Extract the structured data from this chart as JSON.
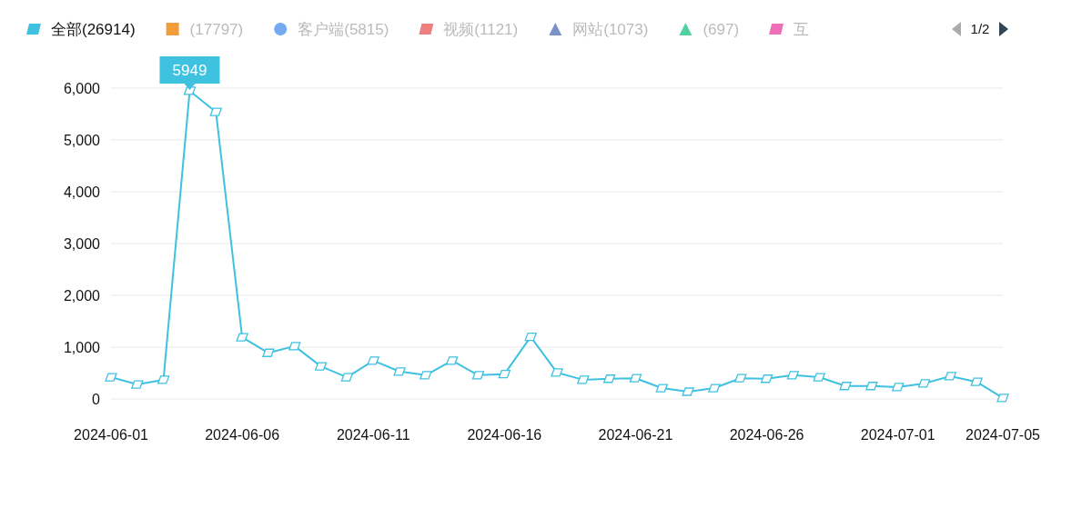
{
  "chart_data": {
    "type": "line",
    "x": [
      "2024-06-01",
      "2024-06-02",
      "2024-06-03",
      "2024-06-04",
      "2024-06-05",
      "2024-06-06",
      "2024-06-07",
      "2024-06-08",
      "2024-06-09",
      "2024-06-10",
      "2024-06-11",
      "2024-06-12",
      "2024-06-13",
      "2024-06-14",
      "2024-06-15",
      "2024-06-16",
      "2024-06-17",
      "2024-06-18",
      "2024-06-19",
      "2024-06-20",
      "2024-06-21",
      "2024-06-22",
      "2024-06-23",
      "2024-06-24",
      "2024-06-25",
      "2024-06-26",
      "2024-06-27",
      "2024-06-28",
      "2024-06-29",
      "2024-06-30",
      "2024-07-01",
      "2024-07-02",
      "2024-07-03",
      "2024-07-04",
      "2024-07-05"
    ],
    "series": [
      {
        "name": "全部(26914)",
        "color": "#3fc1e0",
        "marker": "diamond",
        "values": [
          420,
          280,
          370,
          5949,
          5540,
          1190,
          890,
          1020,
          630,
          420,
          740,
          530,
          460,
          740,
          460,
          480,
          1200,
          510,
          370,
          390,
          400,
          210,
          140,
          210,
          400,
          390,
          460,
          420,
          250,
          250,
          230,
          300,
          440,
          330,
          20
        ]
      },
      {
        "name": "(17797)",
        "color": "#f39c3c",
        "marker": "square",
        "values": [
          null,
          null,
          null,
          null,
          null,
          null,
          null,
          null,
          null,
          null,
          null,
          null,
          null,
          null,
          null,
          null,
          null,
          null,
          null,
          null,
          null,
          null,
          null,
          null,
          null,
          null,
          null,
          null,
          null,
          null,
          null,
          null,
          null,
          null,
          null
        ]
      },
      {
        "name": "客户端(5815)",
        "color": "#74aaf2",
        "marker": "circle",
        "values": [
          null,
          null,
          null,
          null,
          null,
          null,
          null,
          null,
          null,
          null,
          null,
          null,
          null,
          null,
          null,
          null,
          null,
          null,
          null,
          null,
          null,
          null,
          null,
          null,
          null,
          null,
          null,
          null,
          null,
          null,
          null,
          null,
          null,
          null,
          null
        ]
      },
      {
        "name": "视频(1121)",
        "color": "#ee7f7f",
        "marker": "diamond",
        "values": [
          null,
          null,
          null,
          null,
          null,
          null,
          null,
          null,
          null,
          null,
          null,
          null,
          null,
          null,
          null,
          null,
          null,
          null,
          null,
          null,
          null,
          null,
          null,
          null,
          null,
          null,
          null,
          null,
          null,
          null,
          null,
          null,
          null,
          null,
          null
        ]
      },
      {
        "name": "网站(1073)",
        "color": "#7b92c8",
        "marker": "triangle",
        "values": [
          null,
          null,
          null,
          null,
          null,
          null,
          null,
          null,
          null,
          null,
          null,
          null,
          null,
          null,
          null,
          null,
          null,
          null,
          null,
          null,
          null,
          null,
          null,
          null,
          null,
          null,
          null,
          null,
          null,
          null,
          null,
          null,
          null,
          null,
          null
        ]
      },
      {
        "name": "(697)",
        "color": "#4fd1a0",
        "marker": "triangle",
        "values": [
          null,
          null,
          null,
          null,
          null,
          null,
          null,
          null,
          null,
          null,
          null,
          null,
          null,
          null,
          null,
          null,
          null,
          null,
          null,
          null,
          null,
          null,
          null,
          null,
          null,
          null,
          null,
          null,
          null,
          null,
          null,
          null,
          null,
          null,
          null
        ]
      },
      {
        "name": "互",
        "color": "#ee6fb8",
        "marker": "diamond",
        "values": [
          null,
          null,
          null,
          null,
          null,
          null,
          null,
          null,
          null,
          null,
          null,
          null,
          null,
          null,
          null,
          null,
          null,
          null,
          null,
          null,
          null,
          null,
          null,
          null,
          null,
          null,
          null,
          null,
          null,
          null,
          null,
          null,
          null,
          null,
          null
        ]
      }
    ],
    "xlim": [
      "2024-06-01",
      "2024-07-05"
    ],
    "xticks": [
      "2024-06-01",
      "2024-06-06",
      "2024-06-11",
      "2024-06-16",
      "2024-06-21",
      "2024-06-26",
      "2024-07-01",
      "2024-07-05"
    ],
    "ylim": [
      0,
      6000
    ],
    "yticks": [
      0,
      {
        "value": 1000,
        "label": "1,000"
      },
      {
        "value": 2000,
        "label": "2,000"
      },
      {
        "value": 3000,
        "label": "3,000"
      },
      {
        "value": 4000,
        "label": "4,000"
      },
      {
        "value": 5000,
        "label": "5,000"
      },
      {
        "value": 6000,
        "label": "6,000"
      }
    ],
    "grid": "y",
    "legend": "top",
    "line_style": "solid",
    "annotations": [
      {
        "text": "5949",
        "x": "2024-06-04",
        "y": 5949
      },
      "1/2"
    ]
  }
}
